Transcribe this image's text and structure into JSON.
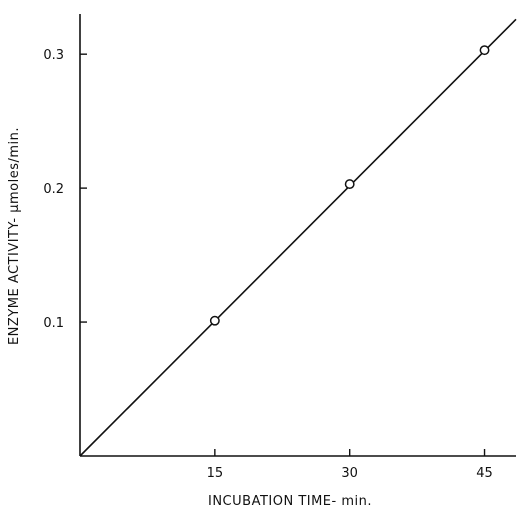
{
  "chart_data": {
    "type": "line",
    "title": "",
    "xlabel": "INCUBATION TIME- min.",
    "ylabel": "ENZYME ACTIVITY-  μmoles/min.",
    "xlim": [
      0,
      48.5
    ],
    "ylim": [
      0,
      0.33
    ],
    "x_ticks": [
      15,
      30,
      45
    ],
    "x_tick_labels": [
      "15",
      "30",
      "45"
    ],
    "y_ticks": [
      0.1,
      0.2,
      0.3
    ],
    "y_tick_labels": [
      "0.1",
      "0.2",
      "0.3"
    ],
    "grid": false,
    "legend": "none",
    "series": [
      {
        "line": {
          "x": [
            0,
            48.5
          ],
          "y": [
            0,
            0.326
          ]
        },
        "points": {
          "x": [
            15,
            30,
            45
          ],
          "y": [
            0.101,
            0.203,
            0.303
          ]
        },
        "marker": "open-circle",
        "color": "#111111"
      }
    ]
  }
}
